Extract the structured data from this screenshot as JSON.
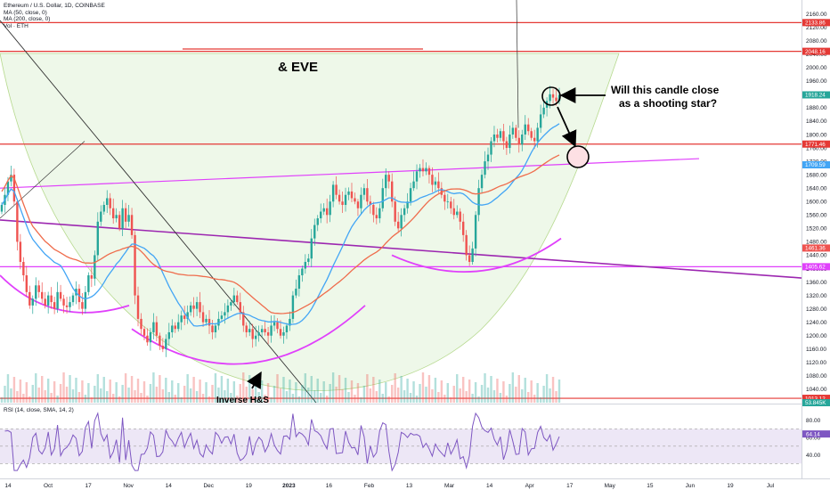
{
  "legend": {
    "symbol": "Ethereum / U.S. Dollar, 1D, COINBASE",
    "ma50": "MA (50, close, 0)",
    "ma200": "MA (200, close, 0)",
    "vol": "Vol · ETH"
  },
  "rsi_legend": "RSI (14, close, SMA, 14, 2)",
  "colors": {
    "up": "#26a69a",
    "down": "#ef5350",
    "ma50": "#42a5f5",
    "ma200": "#ef6c4c",
    "red_line": "#e53935",
    "magenta": "#e040fb",
    "purple": "#9c27b0",
    "cup_fill": "#e8f5e1",
    "cup_edge": "#b6d98e",
    "rsi_line": "#7e57c2",
    "rsi_band": "#ede7f6"
  },
  "chart_data": {
    "type": "candlestick",
    "price_axis": {
      "ylim": [
        1000,
        2180
      ],
      "ticks": [
        1040,
        1080,
        1120,
        1160,
        1200,
        1240,
        1280,
        1320,
        1360,
        1400,
        1440,
        1480,
        1520,
        1560,
        1600,
        1640,
        1680,
        1720,
        1760,
        1800,
        1840,
        1880,
        1920,
        1960,
        2000,
        2040,
        2080,
        2120,
        2160
      ]
    },
    "time_axis": {
      "labels": [
        "14",
        "Oct",
        "17",
        "Nov",
        "14",
        "Dec",
        "19",
        "2023",
        "16",
        "Feb",
        "13",
        "Mar",
        "14",
        "Apr",
        "17",
        "May",
        "15",
        "Jun",
        "19",
        "Jul"
      ]
    },
    "price_badges": [
      {
        "label": "2133.86",
        "value": 2133.86,
        "color": "#e53935"
      },
      {
        "label": "2048.16",
        "value": 2048.16,
        "color": "#e53935"
      },
      {
        "label": "1918.24",
        "value": 1918.24,
        "color": "#26a69a"
      },
      {
        "label": "1771.46",
        "value": 1771.46,
        "color": "#e53935"
      },
      {
        "label": "1709.59",
        "value": 1709.59,
        "color": "#42a5f5"
      },
      {
        "label": "1461.36",
        "value": 1461.36,
        "color": "#ef5350"
      },
      {
        "label": "1405.62",
        "value": 1405.62,
        "color": "#e040fb"
      },
      {
        "label": "1013.12",
        "value": 1013.12,
        "color": "#e53935"
      },
      {
        "label": "53.845K",
        "value": 1000,
        "color": "#26a69a"
      }
    ],
    "horizontal_levels": [
      2133.86,
      2048.16,
      1771.46,
      1405.62,
      1013.12
    ],
    "closes": [
      1590,
      1620,
      1660,
      1680,
      1600,
      1480,
      1420,
      1380,
      1330,
      1290,
      1310,
      1350,
      1330,
      1310,
      1290,
      1320,
      1300,
      1280,
      1330,
      1310,
      1290,
      1285,
      1300,
      1320,
      1340,
      1300,
      1280,
      1330,
      1380,
      1370,
      1440,
      1540,
      1570,
      1590,
      1610,
      1580,
      1550,
      1560,
      1520,
      1580,
      1540,
      1560,
      1500,
      1320,
      1250,
      1220,
      1200,
      1180,
      1210,
      1240,
      1200,
      1170,
      1160,
      1190,
      1210,
      1230,
      1220,
      1240,
      1260,
      1250,
      1270,
      1290,
      1280,
      1300,
      1270,
      1240,
      1250,
      1230,
      1210,
      1230,
      1250,
      1260,
      1270,
      1290,
      1300,
      1320,
      1300,
      1270,
      1230,
      1210,
      1220,
      1190,
      1200,
      1210,
      1220,
      1210,
      1200,
      1230,
      1240,
      1220,
      1200,
      1210,
      1230,
      1250,
      1320,
      1340,
      1380,
      1400,
      1420,
      1430,
      1490,
      1530,
      1550,
      1570,
      1580,
      1560,
      1600,
      1650,
      1620,
      1600,
      1590,
      1620,
      1630,
      1610,
      1600,
      1580,
      1620,
      1640,
      1600,
      1590,
      1560,
      1550,
      1580,
      1640,
      1680,
      1660,
      1600,
      1540,
      1520,
      1560,
      1580,
      1600,
      1640,
      1660,
      1690,
      1700,
      1690,
      1700,
      1680,
      1650,
      1660,
      1640,
      1620,
      1600,
      1600,
      1580,
      1560,
      1570,
      1540,
      1500,
      1440,
      1420,
      1460,
      1560,
      1640,
      1680,
      1720,
      1740,
      1780,
      1800,
      1790,
      1810,
      1780,
      1760,
      1800,
      1820,
      1790,
      1770,
      1800,
      1830,
      1810,
      1790,
      1780,
      1820,
      1860,
      1880,
      1900,
      1920,
      1910,
      1900,
      1918
    ],
    "annotations": [
      {
        "label": "& EVE",
        "type": "text"
      },
      {
        "label": "Will this candle close",
        "type": "text"
      },
      {
        "label": "as a shooting star?",
        "type": "text"
      },
      {
        "label": "Inverse H&S",
        "type": "text"
      }
    ],
    "rsi": {
      "ylim": [
        20,
        90
      ],
      "ticks": [
        40,
        60,
        80
      ],
      "current": 64.14,
      "current_label": "64.14",
      "band": [
        30,
        70
      ]
    }
  }
}
